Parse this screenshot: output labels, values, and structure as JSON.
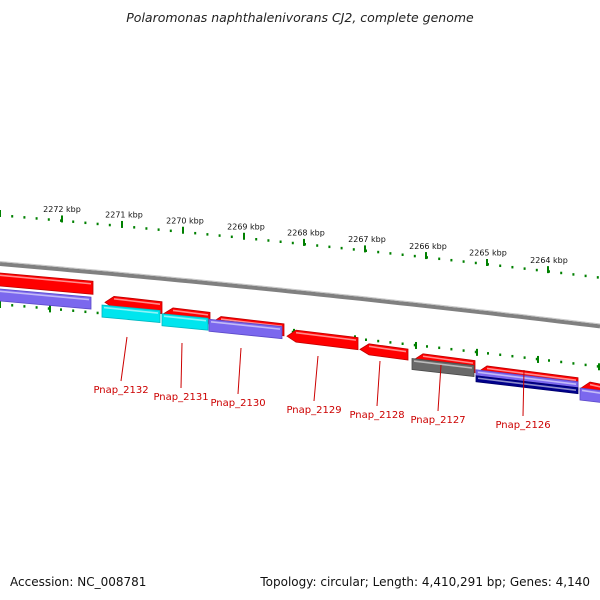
{
  "title": "Polaromonas naphthalenivorans CJ2, complete genome",
  "footer": {
    "accession": "Accession: NC_008781",
    "summary": "Topology: circular; Length: 4,410,291 bp; Genes: 4,140"
  },
  "ruler": {
    "labels": [
      "2272 kbp",
      "2271 kbp",
      "2270 kbp",
      "2269 kbp",
      "2268 kbp",
      "2267 kbp",
      "2266 kbp",
      "2265 kbp",
      "2264 kbp"
    ]
  },
  "genes": [
    {
      "name": "Pnap_2132",
      "color": "#7b68ee",
      "shade": "#5a48c8"
    },
    {
      "name": "Pnap_2131",
      "color": "#00e5ee",
      "shade": "#00b8c0"
    },
    {
      "name": "Pnap_2130",
      "color": "#7b68ee",
      "shade": "#5a48c8"
    },
    {
      "name": "Pnap_2129",
      "color": "#ff0000",
      "shade": "#c00000"
    },
    {
      "name": "Pnap_2128",
      "color": "#ff0000",
      "shade": "#c00000"
    },
    {
      "name": "Pnap_2127",
      "color": "#696969",
      "shade": "#4a4a4a"
    },
    {
      "name": "Pnap_2126",
      "color": "#00008b",
      "shade": "#00006a"
    }
  ],
  "colors": {
    "ruler_ticks": "#008000",
    "backbone": "#808080",
    "label_text": "#cc0000"
  }
}
